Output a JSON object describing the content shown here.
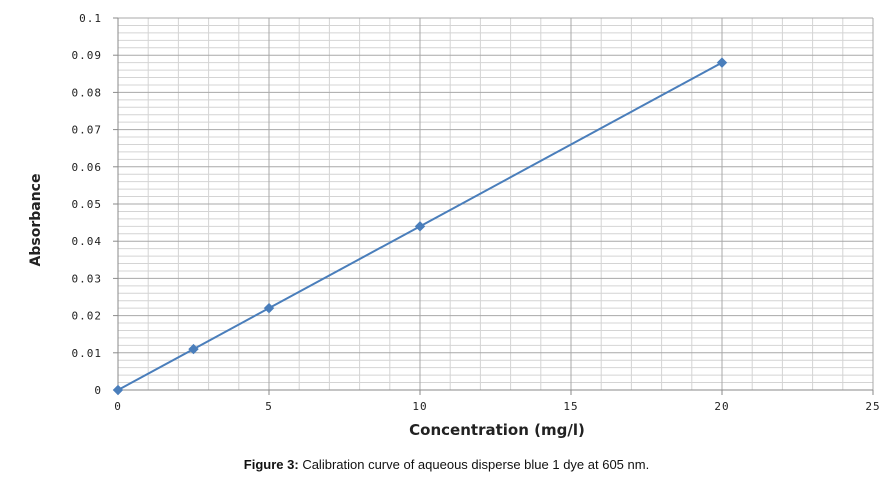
{
  "caption": {
    "label": "Figure 3:",
    "text": " Calibration curve of aqueous disperse blue 1 dye at 605 nm."
  },
  "colors": {
    "series": "#4a7ebb",
    "minor_grid": "#d4d4d4",
    "major_grid": "#a8a8a8"
  },
  "chart_data": {
    "type": "line",
    "title": "",
    "xlabel": "Concentration (mg/l)",
    "ylabel": "Absorbance",
    "xlim": [
      0,
      25
    ],
    "ylim": [
      0,
      0.1
    ],
    "x_ticks": [
      "0",
      "5",
      "10",
      "15",
      "20",
      "25"
    ],
    "y_ticks": [
      "0",
      "0.01",
      "0.02",
      "0.03",
      "0.04",
      "0.05",
      "0.06",
      "0.07",
      "0.08",
      "0.09",
      "0.1"
    ],
    "grid": true,
    "markers": "diamond",
    "series": [
      {
        "x": [
          0,
          2.5,
          5,
          10,
          20
        ],
        "y": [
          0,
          0.011,
          0.022,
          0.044,
          0.088
        ]
      }
    ]
  }
}
